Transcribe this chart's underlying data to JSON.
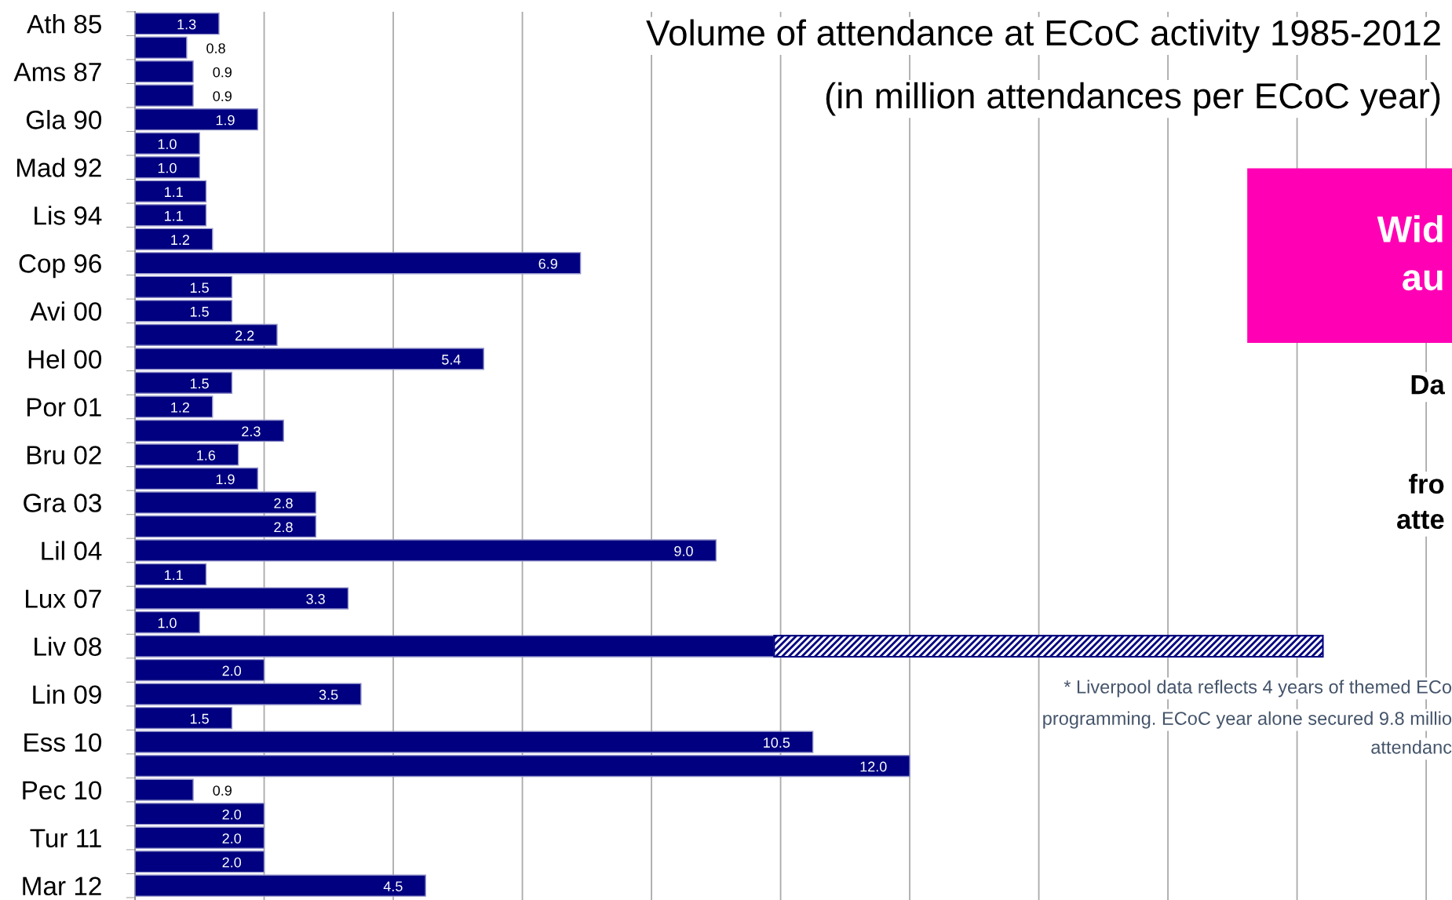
{
  "chart_data": {
    "type": "bar",
    "orientation": "horizontal",
    "stacked": true,
    "title": "Volume of attendance at ECoC activity 1985-2012",
    "subtitle": "(in million attendances per ECoC year)",
    "categories": [
      "Ath 85",
      null,
      "Ams 87",
      null,
      "Gla 90",
      null,
      "Mad 92",
      null,
      "Lis 94",
      null,
      "Cop 96",
      null,
      "Avi 00",
      null,
      "Hel 00",
      null,
      "Por 01",
      null,
      "Bru 02",
      null,
      "Gra 03",
      null,
      "Lil 04",
      null,
      "Lux 07",
      null,
      "Liv 08",
      null,
      "Lin 09",
      null,
      "Ess 10",
      null,
      "Pec 10",
      null,
      "Tur 11",
      null,
      "Mar 12"
    ],
    "series": [
      {
        "color": "#000080",
        "values": [
          1.3,
          0.8,
          0.9,
          0.9,
          1.9,
          1.0,
          1.0,
          1.1,
          1.1,
          1.2,
          6.9,
          1.5,
          1.5,
          2.2,
          5.4,
          1.5,
          1.2,
          2.3,
          1.6,
          1.9,
          2.8,
          2.8,
          9.0,
          1.1,
          3.3,
          1.0,
          9.9,
          2.0,
          3.5,
          1.5,
          10.5,
          12.0,
          0.9,
          2.0,
          2.0,
          2.0,
          4.5
        ],
        "value_labels": [
          "1.3",
          "0.8",
          "0.9",
          "0.9",
          "1.9",
          "1.0",
          "1.0",
          "1.1",
          "1.1",
          "1.2",
          "6.9",
          "1.5",
          "1.5",
          "2.2",
          "5.4",
          "1.5",
          "1.2",
          "2.3",
          "1.6",
          "1.9",
          "2.8",
          "2.8",
          "9.0",
          "1.1",
          "3.3",
          "1.0",
          null,
          "2.0",
          "3.5",
          "1.5",
          "10.5",
          "12.0",
          "0.9",
          "2.0",
          "2.0",
          "2.0",
          "4.5"
        ]
      },
      {
        "color": "#000080",
        "values": [
          null,
          null,
          null,
          null,
          null,
          null,
          null,
          null,
          null,
          null,
          null,
          null,
          null,
          null,
          null,
          null,
          null,
          null,
          null,
          null,
          null,
          null,
          null,
          null,
          null,
          null,
          8.5,
          null,
          null,
          null,
          null,
          null,
          null,
          null,
          null,
          null,
          null
        ]
      }
    ],
    "xlim": [
      0,
      20.4
    ],
    "xticks": [
      {
        "value": 2,
        "label": null
      },
      {
        "value": 4,
        "label": null
      },
      {
        "value": 6,
        "label": null
      },
      {
        "value": 8,
        "label": null
      },
      {
        "value": 10,
        "label": null
      },
      {
        "value": 12,
        "label": null
      },
      {
        "value": 14,
        "label": null
      },
      {
        "value": 16,
        "label": null
      },
      {
        "value": 18,
        "label": null
      },
      {
        "value": 20,
        "label": null
      }
    ],
    "grid": "x",
    "tick_labels": "y",
    "legend": false,
    "annotations": [
      "Wid\nau",
      "Da",
      "fro\natte",
      "* Liverpool data reflects 4 years of themed ECo",
      "programming. ECoC year alone secured 9.8 millio",
      "attendanc"
    ]
  }
}
